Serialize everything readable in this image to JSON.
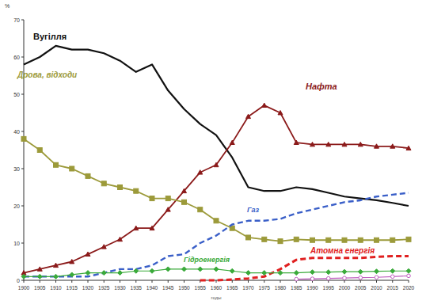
{
  "chart_data": {
    "type": "line",
    "y_label": "%",
    "x_label": "годы",
    "x": [
      1900,
      1905,
      1910,
      1915,
      1920,
      1925,
      1930,
      1935,
      1940,
      1945,
      1950,
      1955,
      1960,
      1965,
      1970,
      1975,
      1980,
      1985,
      1990,
      1995,
      2000,
      2005,
      2010,
      2015,
      2020
    ],
    "xlim": [
      1900,
      2020
    ],
    "xticks": [
      1900,
      1905,
      1910,
      1915,
      1920,
      1925,
      1930,
      1935,
      1940,
      1945,
      1950,
      1955,
      1960,
      1965,
      1970,
      1975,
      1980,
      1985,
      1990,
      1995,
      2000,
      2005,
      2010,
      2015,
      2020
    ],
    "ylim": [
      0,
      70
    ],
    "yticks": [
      0,
      10,
      20,
      30,
      40,
      50,
      60,
      70
    ],
    "grid": false,
    "series": [
      {
        "name": "Вугілля",
        "color": "#111111",
        "line_style": "solid",
        "marker": "none",
        "values": [
          58,
          60,
          63,
          62,
          62,
          61,
          59,
          56,
          58,
          51,
          46,
          42,
          39,
          33,
          25,
          24,
          24,
          25,
          24.5,
          23.5,
          22.5,
          22,
          21.5,
          20.8,
          20
        ]
      },
      {
        "name": "Нафта",
        "color": "#8b1a1a",
        "line_style": "solid",
        "marker": "triangle",
        "values": [
          2,
          3,
          4,
          5,
          7,
          9,
          11,
          14,
          14,
          19,
          24,
          29,
          31,
          37,
          44,
          47,
          45,
          37,
          36.5,
          36.5,
          36.5,
          36.5,
          36,
          36,
          35.5
        ]
      },
      {
        "name": "Дрова, відходи",
        "color": "#9c9a3a",
        "line_style": "solid",
        "marker": "square",
        "values": [
          38,
          35,
          31,
          30,
          28,
          26,
          25,
          24,
          22,
          22,
          21,
          19,
          16,
          14,
          11.5,
          11,
          10.5,
          11,
          10.8,
          10.8,
          10.8,
          10.8,
          10.8,
          10.8,
          11
        ]
      },
      {
        "name": "Газ",
        "color": "#3a5fc8",
        "line_style": "dashed",
        "marker": "none",
        "values": [
          1,
          1,
          1,
          1,
          1,
          2,
          3,
          3,
          4,
          6.5,
          7,
          10,
          12,
          15,
          16,
          16,
          16.5,
          18,
          19,
          20,
          21,
          21.5,
          22.5,
          23,
          23.5
        ]
      },
      {
        "name": "Атомна енергія",
        "color": "#e02020",
        "line_style": "dashed",
        "marker": "none",
        "values": [
          null,
          null,
          null,
          null,
          null,
          null,
          null,
          null,
          null,
          null,
          null,
          0,
          0,
          0.2,
          0.5,
          1,
          3,
          5.5,
          6,
          6,
          6,
          6,
          6.3,
          6.5,
          6.5
        ]
      },
      {
        "name": "Гідроенергія",
        "color": "#3aaa3a",
        "line_style": "solid",
        "marker": "diamond",
        "values": [
          1,
          1,
          1,
          1.5,
          2,
          2,
          2,
          2.5,
          2.5,
          3,
          3,
          3,
          3,
          2.5,
          2,
          2,
          2,
          2,
          2.2,
          2.2,
          2.3,
          2.3,
          2.4,
          2.5,
          2.5
        ]
      },
      {
        "color": "#c060c0",
        "line_style": "solid",
        "marker": "circle",
        "values": [
          null,
          null,
          null,
          null,
          null,
          null,
          null,
          null,
          null,
          null,
          null,
          null,
          null,
          null,
          null,
          null,
          null,
          0.3,
          0.4,
          0.5,
          0.6,
          0.7,
          0.8,
          1,
          1.2
        ]
      }
    ]
  }
}
